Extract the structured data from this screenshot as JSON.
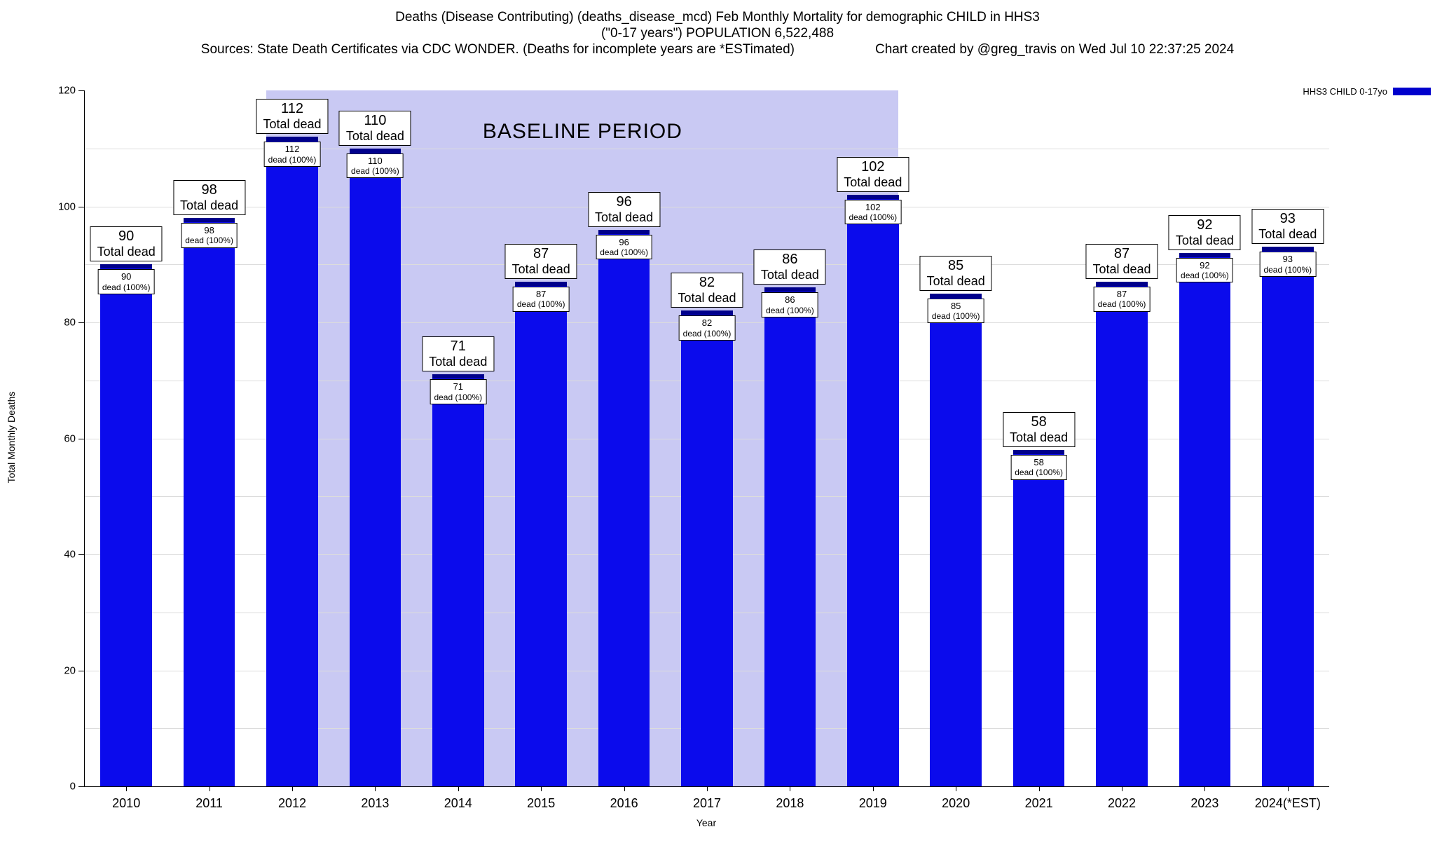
{
  "header": {
    "line1": "Deaths (Disease Contributing) (deaths_disease_mcd) Feb Monthly Mortality for demographic CHILD in HHS3",
    "line2": "(\"0-17 years\") POPULATION 6,522,488",
    "sources": "Sources: State Death Certificates via CDC WONDER. (Deaths for incomplete years are *ESTimated)",
    "credit": "Chart created by @greg_travis on Wed Jul 10 22:37:25 2024"
  },
  "legend": {
    "label": "HHS3 CHILD 0-17yo",
    "swatch_color": "#0000cd"
  },
  "chart_data": {
    "type": "bar",
    "title": "Deaths (Disease Contributing) (deaths_disease_mcd) Feb Monthly Mortality for demographic CHILD in HHS3",
    "subtitle": "(\"0-17 years\") POPULATION 6,522,488",
    "xlabel": "Year",
    "ylabel": "Total Monthly Deaths",
    "ylim": [
      0,
      120
    ],
    "yticks": [
      0,
      20,
      40,
      60,
      80,
      100,
      120
    ],
    "minor_grid_step": 10,
    "grid": true,
    "legend_position": "top-right",
    "series_name": "HHS3 CHILD 0-17yo",
    "categories": [
      "2010",
      "2011",
      "2012",
      "2013",
      "2014",
      "2015",
      "2016",
      "2017",
      "2018",
      "2019",
      "2020",
      "2021",
      "2022",
      "2023",
      "2024(*EST)"
    ],
    "values": [
      90,
      98,
      112,
      110,
      71,
      87,
      96,
      82,
      86,
      102,
      85,
      58,
      87,
      92,
      93
    ],
    "annotation_top_suffix": "Total dead",
    "annotation_inner_suffix": "dead (100%)",
    "bar_color": "#0b0bec",
    "bar_cap_color": "#00008b",
    "baseline_region": {
      "label": "BASELINE PERIOD",
      "from": "2012",
      "to": "2019",
      "fill": "#c9c9f3"
    }
  }
}
